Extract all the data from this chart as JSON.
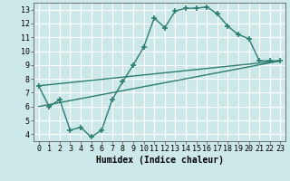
{
  "title": "",
  "xlabel": "Humidex (Indice chaleur)",
  "bg_color": "#cde8e8",
  "grid_color": "#ffffff",
  "line_color": "#2a7d70",
  "xlim": [
    -0.5,
    23.5
  ],
  "ylim": [
    3.5,
    13.5
  ],
  "xticks": [
    0,
    1,
    2,
    3,
    4,
    5,
    6,
    7,
    8,
    9,
    10,
    11,
    12,
    13,
    14,
    15,
    16,
    17,
    18,
    19,
    20,
    21,
    22,
    23
  ],
  "yticks": [
    4,
    5,
    6,
    7,
    8,
    9,
    10,
    11,
    12,
    13
  ],
  "line1_x": [
    0,
    1,
    2,
    3,
    4,
    5,
    6,
    7,
    8,
    9,
    10,
    11,
    12,
    13,
    14,
    15,
    16,
    17,
    18,
    19,
    20,
    21,
    22,
    23
  ],
  "line1_y": [
    7.5,
    6.0,
    6.5,
    4.3,
    4.5,
    3.8,
    4.3,
    6.5,
    7.8,
    9.0,
    10.3,
    12.4,
    11.7,
    12.9,
    13.1,
    13.1,
    13.2,
    12.7,
    11.8,
    11.2,
    10.9,
    9.3,
    9.3,
    9.3
  ],
  "line2_x": [
    0,
    23
  ],
  "line2_y": [
    7.5,
    9.3
  ],
  "line3_x": [
    0,
    23
  ],
  "line3_y": [
    6.0,
    9.3
  ],
  "xlabel_fontsize": 7,
  "tick_fontsize": 6
}
